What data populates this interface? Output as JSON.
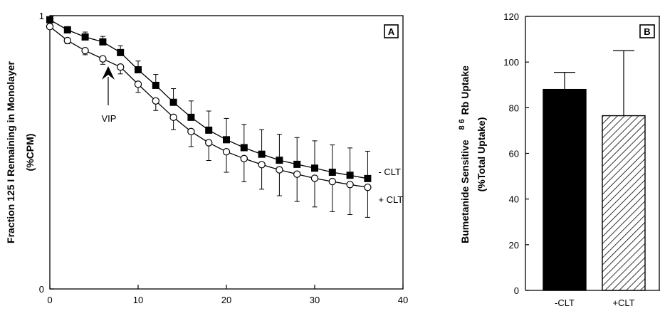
{
  "chart_data": [
    {
      "type": "line",
      "panel_label": "A",
      "ylabel_line1": "Fraction 125 I Remaining in Monolayer",
      "ylabel_line2": "(%CPM)",
      "xlabel": "",
      "xlim": [
        0,
        40
      ],
      "ylim": [
        0,
        1
      ],
      "x_ticks": [
        "0",
        "10",
        "20",
        "30",
        "40"
      ],
      "y_ticks": [
        "0",
        "1"
      ],
      "grid": false,
      "x": [
        0,
        2,
        4,
        6,
        8,
        10,
        12,
        14,
        16,
        18,
        20,
        22,
        24,
        26,
        28,
        30,
        32,
        34,
        36
      ],
      "series": [
        {
          "name": "- CLT",
          "marker": "filled-square",
          "values": [
            0.985,
            0.948,
            0.922,
            0.904,
            0.865,
            0.802,
            0.745,
            0.683,
            0.628,
            0.581,
            0.546,
            0.517,
            0.493,
            0.471,
            0.456,
            0.442,
            0.427,
            0.416,
            0.404
          ],
          "errors": [
            0.01,
            0.012,
            0.018,
            0.02,
            0.025,
            0.032,
            0.04,
            0.05,
            0.06,
            0.07,
            0.078,
            0.085,
            0.09,
            0.095,
            0.098,
            0.1,
            0.1,
            0.1,
            0.1
          ]
        },
        {
          "name": "+ CLT",
          "marker": "open-circle",
          "values": [
            0.96,
            0.909,
            0.872,
            0.842,
            0.812,
            0.749,
            0.688,
            0.628,
            0.576,
            0.535,
            0.502,
            0.477,
            0.455,
            0.436,
            0.42,
            0.405,
            0.393,
            0.382,
            0.372
          ],
          "errors": [
            0.008,
            0.012,
            0.015,
            0.02,
            0.025,
            0.03,
            0.035,
            0.045,
            0.055,
            0.065,
            0.075,
            0.085,
            0.09,
            0.095,
            0.1,
            0.105,
            0.11,
            0.11,
            0.11
          ]
        }
      ],
      "annotations": [
        {
          "text": "VIP",
          "x": 7,
          "arrow": true
        }
      ]
    },
    {
      "type": "bar",
      "panel_label": "B",
      "ylabel_line1": "Bumetanide Sensitive",
      "ylabel_rb_mass": "8 6",
      "ylabel_rb_rest": "Rb Uptake",
      "ylabel_line2": "(%Total Uptake)",
      "categories": [
        "-CLT",
        "+CLT"
      ],
      "values": [
        88,
        76.5
      ],
      "errors": [
        7.5,
        28.5
      ],
      "fills": [
        "solid-black",
        "diagonal-hatch"
      ],
      "ylim": [
        0,
        120
      ],
      "y_ticks": [
        "0",
        "20",
        "40",
        "60",
        "80",
        "100",
        "120"
      ],
      "grid": false
    }
  ]
}
